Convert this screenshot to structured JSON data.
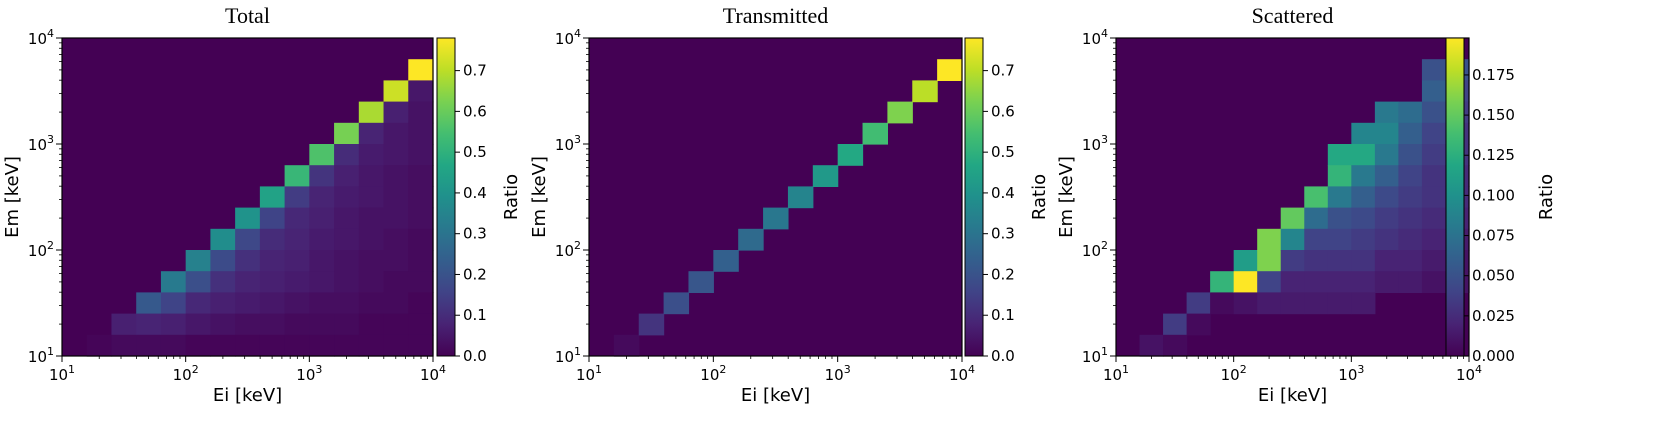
{
  "colormap": "viridis",
  "colors": {
    "low": "#440154",
    "mid": "#21908d",
    "high": "#fde725"
  },
  "panels": [
    {
      "title": "Total",
      "xlabel": "Ei [keV]",
      "ylabel": "Em [keV]",
      "colorbar_label": "Ratio",
      "colorbar_ticks": [
        "0.0",
        "0.1",
        "0.2",
        "0.3",
        "0.4",
        "0.5",
        "0.6",
        "0.7"
      ],
      "x_ticks": [
        {
          "base": "10",
          "exp": "1"
        },
        {
          "base": "10",
          "exp": "2"
        },
        {
          "base": "10",
          "exp": "3"
        },
        {
          "base": "10",
          "exp": "4"
        }
      ],
      "y_ticks": [
        {
          "base": "10",
          "exp": "1"
        },
        {
          "base": "10",
          "exp": "2"
        },
        {
          "base": "10",
          "exp": "3"
        },
        {
          "base": "10",
          "exp": "4"
        }
      ]
    },
    {
      "title": "Transmitted",
      "xlabel": "Ei [keV]",
      "ylabel": "Em [keV]",
      "colorbar_label": "Ratio",
      "colorbar_ticks": [
        "0.0",
        "0.1",
        "0.2",
        "0.3",
        "0.4",
        "0.5",
        "0.6",
        "0.7"
      ],
      "x_ticks": [
        {
          "base": "10",
          "exp": "1"
        },
        {
          "base": "10",
          "exp": "2"
        },
        {
          "base": "10",
          "exp": "3"
        },
        {
          "base": "10",
          "exp": "4"
        }
      ],
      "y_ticks": [
        {
          "base": "10",
          "exp": "1"
        },
        {
          "base": "10",
          "exp": "2"
        },
        {
          "base": "10",
          "exp": "3"
        },
        {
          "base": "10",
          "exp": "4"
        }
      ]
    },
    {
      "title": "Scattered",
      "xlabel": "Ei [keV]",
      "ylabel": "Em [keV]",
      "colorbar_label": "Ratio",
      "colorbar_ticks": [
        "0.000",
        "0.025",
        "0.050",
        "0.075",
        "0.100",
        "0.125",
        "0.150",
        "0.175"
      ],
      "x_ticks": [
        {
          "base": "10",
          "exp": "1"
        },
        {
          "base": "10",
          "exp": "2"
        },
        {
          "base": "10",
          "exp": "3"
        },
        {
          "base": "10",
          "exp": "4"
        }
      ],
      "y_ticks": [
        {
          "base": "10",
          "exp": "1"
        },
        {
          "base": "10",
          "exp": "2"
        },
        {
          "base": "10",
          "exp": "3"
        },
        {
          "base": "10",
          "exp": "4"
        }
      ]
    }
  ],
  "chart_data": [
    {
      "type": "heatmap",
      "title": "Total",
      "xlabel": "Ei [keV]",
      "ylabel": "Em [keV]",
      "xscale": "log",
      "yscale": "log",
      "xlim": [
        10,
        10000
      ],
      "ylim": [
        10,
        10000
      ],
      "bins_per_axis": 15,
      "vmin": 0.0,
      "vmax": 0.78,
      "colorbar_label": "Ratio",
      "cells": [
        [
          1,
          0,
          0.01
        ],
        [
          2,
          1,
          0.07
        ],
        [
          2,
          0,
          0.02
        ],
        [
          3,
          2,
          0.22
        ],
        [
          3,
          1,
          0.08
        ],
        [
          3,
          0,
          0.02
        ],
        [
          4,
          3,
          0.32
        ],
        [
          4,
          2,
          0.16
        ],
        [
          4,
          1,
          0.07
        ],
        [
          4,
          0,
          0.02
        ],
        [
          5,
          4,
          0.34
        ],
        [
          5,
          3,
          0.19
        ],
        [
          5,
          2,
          0.09
        ],
        [
          5,
          1,
          0.05
        ],
        [
          5,
          0,
          0.01
        ],
        [
          6,
          5,
          0.38
        ],
        [
          6,
          4,
          0.18
        ],
        [
          6,
          3,
          0.11
        ],
        [
          6,
          2,
          0.07
        ],
        [
          6,
          1,
          0.04
        ],
        [
          6,
          0,
          0.01
        ],
        [
          7,
          6,
          0.4
        ],
        [
          7,
          5,
          0.17
        ],
        [
          7,
          4,
          0.11
        ],
        [
          7,
          3,
          0.08
        ],
        [
          7,
          2,
          0.06
        ],
        [
          7,
          1,
          0.03
        ],
        [
          7,
          0,
          0.01
        ],
        [
          8,
          7,
          0.45
        ],
        [
          8,
          6,
          0.16
        ],
        [
          8,
          5,
          0.1
        ],
        [
          8,
          4,
          0.08
        ],
        [
          8,
          3,
          0.07
        ],
        [
          8,
          2,
          0.05
        ],
        [
          8,
          1,
          0.03
        ],
        [
          8,
          0,
          0.01
        ],
        [
          9,
          8,
          0.52
        ],
        [
          9,
          7,
          0.14
        ],
        [
          9,
          6,
          0.09
        ],
        [
          9,
          5,
          0.08
        ],
        [
          9,
          4,
          0.07
        ],
        [
          9,
          3,
          0.06
        ],
        [
          9,
          2,
          0.04
        ],
        [
          9,
          1,
          0.02
        ],
        [
          9,
          0,
          0.01
        ],
        [
          10,
          9,
          0.56
        ],
        [
          10,
          8,
          0.12
        ],
        [
          10,
          7,
          0.08
        ],
        [
          10,
          6,
          0.07
        ],
        [
          10,
          5,
          0.06
        ],
        [
          10,
          4,
          0.05
        ],
        [
          10,
          3,
          0.05
        ],
        [
          10,
          2,
          0.03
        ],
        [
          10,
          1,
          0.02
        ],
        [
          10,
          0,
          0.01
        ],
        [
          11,
          10,
          0.62
        ],
        [
          11,
          9,
          0.1
        ],
        [
          11,
          8,
          0.07
        ],
        [
          11,
          7,
          0.06
        ],
        [
          11,
          6,
          0.05
        ],
        [
          11,
          5,
          0.05
        ],
        [
          11,
          4,
          0.04
        ],
        [
          11,
          3,
          0.04
        ],
        [
          11,
          2,
          0.03
        ],
        [
          11,
          1,
          0.02
        ],
        [
          11,
          0,
          0.01
        ],
        [
          12,
          11,
          0.68
        ],
        [
          12,
          10,
          0.08
        ],
        [
          12,
          9,
          0.06
        ],
        [
          12,
          8,
          0.05
        ],
        [
          12,
          7,
          0.05
        ],
        [
          12,
          6,
          0.04
        ],
        [
          12,
          5,
          0.04
        ],
        [
          12,
          4,
          0.03
        ],
        [
          12,
          3,
          0.03
        ],
        [
          12,
          2,
          0.02
        ],
        [
          12,
          1,
          0.01
        ],
        [
          12,
          0,
          0.01
        ],
        [
          13,
          12,
          0.72
        ],
        [
          13,
          11,
          0.07
        ],
        [
          13,
          10,
          0.05
        ],
        [
          13,
          9,
          0.05
        ],
        [
          13,
          8,
          0.04
        ],
        [
          13,
          7,
          0.04
        ],
        [
          13,
          6,
          0.04
        ],
        [
          13,
          5,
          0.03
        ],
        [
          13,
          4,
          0.03
        ],
        [
          13,
          3,
          0.02
        ],
        [
          13,
          2,
          0.02
        ],
        [
          13,
          1,
          0.01
        ],
        [
          13,
          0,
          0.01
        ],
        [
          14,
          13,
          0.78
        ],
        [
          14,
          12,
          0.05
        ],
        [
          14,
          11,
          0.04
        ],
        [
          14,
          10,
          0.04
        ],
        [
          14,
          9,
          0.04
        ],
        [
          14,
          8,
          0.03
        ],
        [
          14,
          7,
          0.03
        ],
        [
          14,
          6,
          0.03
        ],
        [
          14,
          5,
          0.02
        ],
        [
          14,
          4,
          0.02
        ],
        [
          14,
          3,
          0.02
        ],
        [
          14,
          2,
          0.01
        ],
        [
          14,
          1,
          0.01
        ],
        [
          14,
          0,
          0.01
        ]
      ]
    },
    {
      "type": "heatmap",
      "title": "Transmitted",
      "xlabel": "Ei [keV]",
      "ylabel": "Em [keV]",
      "xscale": "log",
      "yscale": "log",
      "xlim": [
        10,
        10000
      ],
      "ylim": [
        10,
        10000
      ],
      "bins_per_axis": 15,
      "vmin": 0.0,
      "vmax": 0.78,
      "colorbar_label": "Ratio",
      "cells": [
        [
          1,
          0,
          0.02
        ],
        [
          2,
          1,
          0.12
        ],
        [
          3,
          2,
          0.19
        ],
        [
          4,
          3,
          0.21
        ],
        [
          5,
          4,
          0.24
        ],
        [
          6,
          5,
          0.27
        ],
        [
          7,
          6,
          0.31
        ],
        [
          8,
          7,
          0.35
        ],
        [
          9,
          8,
          0.42
        ],
        [
          10,
          9,
          0.47
        ],
        [
          11,
          10,
          0.54
        ],
        [
          12,
          11,
          0.63
        ],
        [
          13,
          12,
          0.7
        ],
        [
          14,
          13,
          0.78
        ]
      ]
    },
    {
      "type": "heatmap",
      "title": "Scattered",
      "xlabel": "Ei [keV]",
      "ylabel": "Em [keV]",
      "xscale": "log",
      "yscale": "log",
      "xlim": [
        10,
        10000
      ],
      "ylim": [
        10,
        10000
      ],
      "bins_per_axis": 15,
      "vmin": 0.0,
      "vmax": 0.198,
      "colorbar_label": "Ratio",
      "cells": [
        [
          1,
          0,
          0.01
        ],
        [
          2,
          1,
          0.035
        ],
        [
          2,
          0,
          0.005
        ],
        [
          3,
          2,
          0.035
        ],
        [
          3,
          1,
          0.005
        ],
        [
          4,
          3,
          0.13
        ],
        [
          4,
          2,
          0.005
        ],
        [
          5,
          4,
          0.11
        ],
        [
          5,
          3,
          0.198
        ],
        [
          5,
          2,
          0.01
        ],
        [
          6,
          5,
          0.16
        ],
        [
          6,
          4,
          0.16
        ],
        [
          6,
          3,
          0.04
        ],
        [
          6,
          2,
          0.015
        ],
        [
          7,
          6,
          0.15
        ],
        [
          7,
          5,
          0.09
        ],
        [
          7,
          4,
          0.035
        ],
        [
          7,
          3,
          0.02
        ],
        [
          7,
          2,
          0.015
        ],
        [
          8,
          7,
          0.14
        ],
        [
          8,
          6,
          0.07
        ],
        [
          8,
          5,
          0.04
        ],
        [
          8,
          4,
          0.03
        ],
        [
          8,
          3,
          0.02
        ],
        [
          8,
          2,
          0.015
        ],
        [
          9,
          9,
          0.12
        ],
        [
          9,
          8,
          0.13
        ],
        [
          9,
          7,
          0.08
        ],
        [
          9,
          6,
          0.05
        ],
        [
          9,
          5,
          0.04
        ],
        [
          9,
          4,
          0.03
        ],
        [
          9,
          3,
          0.02
        ],
        [
          9,
          2,
          0.015
        ],
        [
          10,
          10,
          0.09
        ],
        [
          10,
          9,
          0.12
        ],
        [
          10,
          8,
          0.08
        ],
        [
          10,
          7,
          0.06
        ],
        [
          10,
          6,
          0.045
        ],
        [
          10,
          5,
          0.035
        ],
        [
          10,
          4,
          0.03
        ],
        [
          10,
          3,
          0.02
        ],
        [
          10,
          2,
          0.015
        ],
        [
          11,
          11,
          0.08
        ],
        [
          11,
          10,
          0.09
        ],
        [
          11,
          9,
          0.08
        ],
        [
          11,
          8,
          0.06
        ],
        [
          11,
          7,
          0.045
        ],
        [
          11,
          6,
          0.035
        ],
        [
          11,
          5,
          0.03
        ],
        [
          11,
          4,
          0.02
        ],
        [
          11,
          3,
          0.015
        ],
        [
          12,
          11,
          0.07
        ],
        [
          12,
          10,
          0.06
        ],
        [
          12,
          9,
          0.05
        ],
        [
          12,
          8,
          0.04
        ],
        [
          12,
          7,
          0.035
        ],
        [
          12,
          6,
          0.03
        ],
        [
          12,
          5,
          0.025
        ],
        [
          12,
          4,
          0.02
        ],
        [
          12,
          3,
          0.015
        ],
        [
          13,
          13,
          0.05
        ],
        [
          13,
          12,
          0.06
        ],
        [
          13,
          11,
          0.05
        ],
        [
          13,
          10,
          0.04
        ],
        [
          13,
          9,
          0.035
        ],
        [
          13,
          8,
          0.03
        ],
        [
          13,
          7,
          0.03
        ],
        [
          13,
          6,
          0.025
        ],
        [
          13,
          5,
          0.02
        ],
        [
          13,
          4,
          0.015
        ],
        [
          13,
          3,
          0.01
        ],
        [
          14,
          13,
          0.05
        ],
        [
          14,
          12,
          0.04
        ],
        [
          14,
          11,
          0.035
        ],
        [
          14,
          10,
          0.03
        ],
        [
          14,
          9,
          0.03
        ],
        [
          14,
          8,
          0.025
        ],
        [
          14,
          7,
          0.025
        ],
        [
          14,
          6,
          0.02
        ],
        [
          14,
          5,
          0.015
        ],
        [
          14,
          4,
          0.01
        ],
        [
          14,
          3,
          0.01
        ]
      ]
    }
  ]
}
